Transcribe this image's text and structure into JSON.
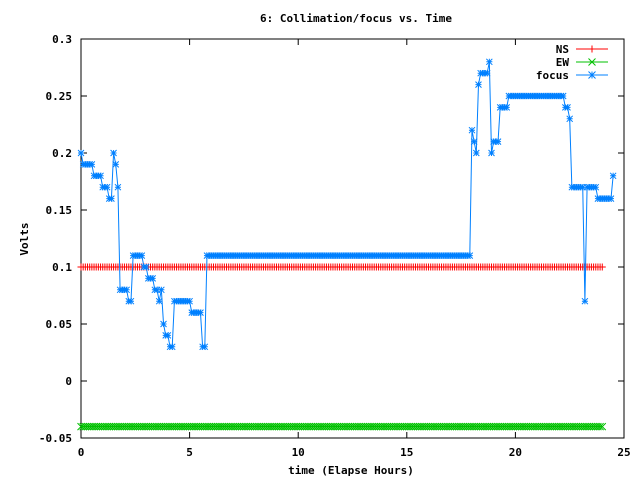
{
  "chart_data": {
    "type": "line",
    "title": "6: Collimation/focus vs. Time",
    "xlabel": "time (Elapse Hours)",
    "ylabel": "Volts",
    "xlim": [
      0,
      25
    ],
    "ylim": [
      -0.05,
      0.3
    ],
    "x_ticks": [
      "0",
      "5",
      "10",
      "15",
      "20",
      "25"
    ],
    "y_ticks": [
      "-0.05",
      "0",
      "0.05",
      "0.1",
      "0.15",
      "0.2",
      "0.25",
      "0.3"
    ],
    "x_tick_values": [
      0,
      5,
      10,
      15,
      20,
      25
    ],
    "y_tick_values": [
      -0.05,
      0,
      0.05,
      0.1,
      0.15,
      0.2,
      0.25,
      0.3
    ],
    "legend_position": "top-right",
    "grid": false,
    "series": [
      {
        "name": "NS",
        "color": "#ff0000",
        "marker": "plus",
        "x_range": [
          0,
          24
        ],
        "x_step": 0.1,
        "constant": 0.1
      },
      {
        "name": "EW",
        "color": "#00c000",
        "marker": "x",
        "x_range": [
          0,
          24
        ],
        "x_step": 0.1,
        "constant": -0.04
      },
      {
        "name": "focus",
        "color": "#0080ff",
        "marker": "star",
        "points": [
          [
            0.0,
            0.2
          ],
          [
            0.1,
            0.19
          ],
          [
            0.2,
            0.19
          ],
          [
            0.3,
            0.19
          ],
          [
            0.4,
            0.19
          ],
          [
            0.5,
            0.19
          ],
          [
            0.6,
            0.18
          ],
          [
            0.7,
            0.18
          ],
          [
            0.8,
            0.18
          ],
          [
            0.9,
            0.18
          ],
          [
            1.0,
            0.17
          ],
          [
            1.1,
            0.17
          ],
          [
            1.2,
            0.17
          ],
          [
            1.3,
            0.16
          ],
          [
            1.4,
            0.16
          ],
          [
            1.5,
            0.2
          ],
          [
            1.6,
            0.19
          ],
          [
            1.7,
            0.17
          ],
          [
            1.8,
            0.08
          ],
          [
            1.9,
            0.08
          ],
          [
            2.0,
            0.08
          ],
          [
            2.1,
            0.08
          ],
          [
            2.2,
            0.07
          ],
          [
            2.3,
            0.07
          ],
          [
            2.4,
            0.11
          ],
          [
            2.5,
            0.11
          ],
          [
            2.6,
            0.11
          ],
          [
            2.7,
            0.11
          ],
          [
            2.8,
            0.11
          ],
          [
            2.9,
            0.1
          ],
          [
            3.0,
            0.1
          ],
          [
            3.1,
            0.09
          ],
          [
            3.2,
            0.09
          ],
          [
            3.3,
            0.09
          ],
          [
            3.4,
            0.08
          ],
          [
            3.5,
            0.08
          ],
          [
            3.6,
            0.07
          ],
          [
            3.7,
            0.08
          ],
          [
            3.8,
            0.05
          ],
          [
            3.9,
            0.04
          ],
          [
            4.0,
            0.04
          ],
          [
            4.1,
            0.03
          ],
          [
            4.2,
            0.03
          ],
          [
            4.3,
            0.07
          ],
          [
            4.4,
            0.07
          ],
          [
            4.5,
            0.07
          ],
          [
            4.6,
            0.07
          ],
          [
            4.7,
            0.07
          ],
          [
            4.8,
            0.07
          ],
          [
            4.9,
            0.07
          ],
          [
            5.0,
            0.07
          ],
          [
            5.1,
            0.06
          ],
          [
            5.2,
            0.06
          ],
          [
            5.3,
            0.06
          ],
          [
            5.4,
            0.06
          ],
          [
            5.5,
            0.06
          ],
          [
            5.6,
            0.03
          ],
          [
            5.7,
            0.03
          ],
          [
            5.8,
            0.11
          ],
          [
            18.0,
            0.22
          ],
          [
            18.1,
            0.21
          ],
          [
            18.2,
            0.2
          ],
          [
            18.3,
            0.26
          ],
          [
            18.4,
            0.27
          ],
          [
            18.5,
            0.27
          ],
          [
            18.6,
            0.27
          ],
          [
            18.7,
            0.27
          ],
          [
            18.8,
            0.28
          ],
          [
            18.9,
            0.2
          ],
          [
            19.0,
            0.21
          ],
          [
            19.1,
            0.21
          ],
          [
            19.2,
            0.21
          ],
          [
            19.3,
            0.24
          ],
          [
            19.4,
            0.24
          ],
          [
            19.5,
            0.24
          ],
          [
            19.6,
            0.24
          ],
          [
            19.7,
            0.25
          ],
          [
            22.2,
            0.25
          ],
          [
            22.3,
            0.24
          ],
          [
            22.4,
            0.24
          ],
          [
            22.5,
            0.23
          ],
          [
            22.6,
            0.17
          ],
          [
            22.7,
            0.17
          ],
          [
            22.8,
            0.17
          ],
          [
            22.9,
            0.17
          ],
          [
            23.0,
            0.17
          ],
          [
            23.1,
            0.17
          ],
          [
            23.2,
            0.07
          ],
          [
            23.3,
            0.17
          ],
          [
            23.4,
            0.17
          ],
          [
            23.5,
            0.17
          ],
          [
            23.6,
            0.17
          ],
          [
            23.7,
            0.17
          ],
          [
            23.8,
            0.16
          ],
          [
            23.9,
            0.16
          ],
          [
            24.0,
            0.16
          ],
          [
            24.1,
            0.16
          ],
          [
            24.2,
            0.16
          ],
          [
            24.3,
            0.16
          ],
          [
            24.4,
            0.16
          ],
          [
            24.5,
            0.18
          ]
        ],
        "constant_segments": [
          {
            "x_range": [
              5.8,
              18.0
            ],
            "x_step": 0.1,
            "value": 0.11
          },
          {
            "x_range": [
              19.7,
              22.2
            ],
            "x_step": 0.1,
            "value": 0.25
          }
        ]
      }
    ]
  }
}
